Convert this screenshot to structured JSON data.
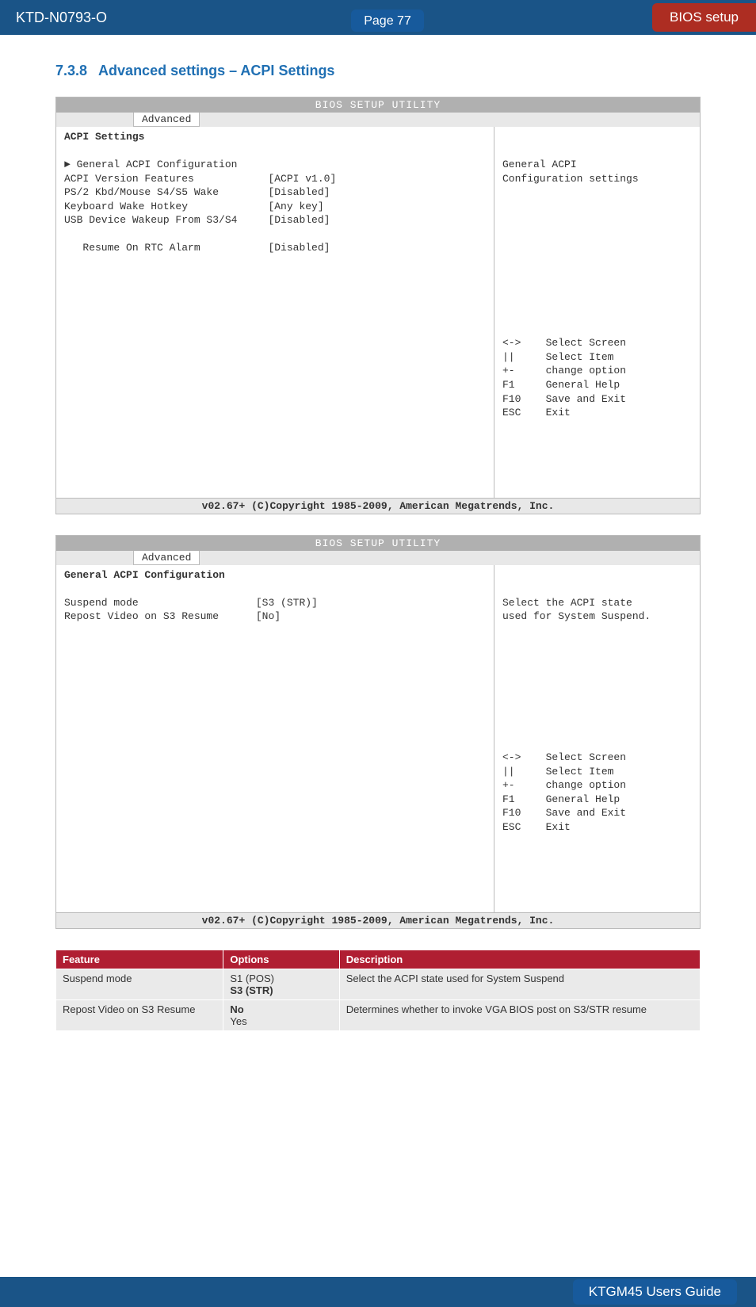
{
  "header": {
    "doc_id": "KTD-N0793-O",
    "page_label": "Page 77",
    "section_label": "BIOS setup"
  },
  "section_title": {
    "num": "7.3.8",
    "text": "Advanced settings – ACPI Settings"
  },
  "bios_common": {
    "header_text": "BIOS SETUP UTILITY",
    "tab_label": "Advanced",
    "footer_text": "v02.67+ (C)Copyright 1985-2009, American Megatrends, Inc.",
    "help_keys": "<->    Select Screen\n||     Select Item\n+-     change option\nF1     General Help\nF10    Save and Exit\nESC    Exit"
  },
  "bios1": {
    "left": "**ACPI Settings**\n\n► General ACPI Configuration\nACPI Version Features            [ACPI v1.0]\nPS/2 Kbd/Mouse S4/S5 Wake        [Disabled]\nKeyboard Wake Hotkey             [Any key]\nUSB Device Wakeup From S3/S4     [Disabled]\n\n   Resume On RTC Alarm           [Disabled]",
    "right_top": "General ACPI\nConfiguration settings"
  },
  "bios2": {
    "left": "**General ACPI Configuration**\n\nSuspend mode                   [S3 (STR)]\nRepost Video on S3 Resume      [No]",
    "right_top": "Select the ACPI state\nused for System Suspend."
  },
  "feature_table": {
    "headers": [
      "Feature",
      "Options",
      "Description"
    ],
    "rows": [
      [
        "Suspend mode",
        "S1 (POS)\n**S3 (STR)**",
        "Select the ACPI state used for System Suspend"
      ],
      [
        "Repost Video on S3 Resume",
        "**No**\nYes",
        "Determines whether to invoke VGA BIOS post on S3/STR resume"
      ]
    ]
  },
  "footer": {
    "label": "KTGM45 Users Guide"
  },
  "colors": {
    "header_bg": "#1a5487",
    "pill_bg": "#175a9c",
    "red_pill_bg": "#ad2d22",
    "table_header_bg": "#b01e32",
    "table_cell_bg": "#eaeaea",
    "section_title_color": "#1f6fb3",
    "bios_header_bg": "#b0b0b0",
    "bios_tabs_bg": "#e8e8e8",
    "bios_border": "#bbbbbb"
  }
}
